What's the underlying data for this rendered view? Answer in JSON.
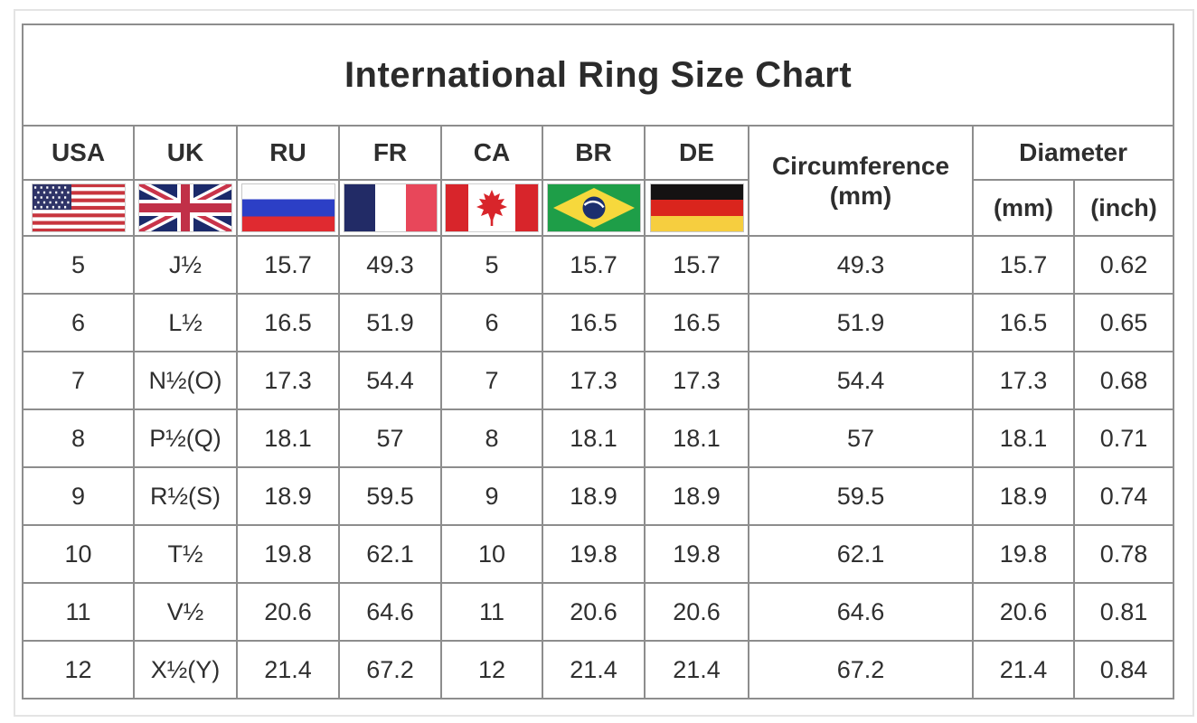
{
  "chart_data": {
    "type": "table",
    "title": "International Ring Size Chart",
    "country_columns": [
      "USA",
      "UK",
      "RU",
      "FR",
      "CA",
      "BR",
      "DE"
    ],
    "flag_icons": [
      "usa-flag-icon",
      "uk-flag-icon",
      "russia-flag-icon",
      "france-flag-icon",
      "canada-flag-icon",
      "brazil-flag-icon",
      "germany-flag-icon"
    ],
    "circumference": {
      "label": "Circumference",
      "unit": "(mm)"
    },
    "diameter": {
      "label": "Diameter",
      "unit_mm": "(mm)",
      "unit_inch": "(inch)"
    },
    "column_order": [
      "USA",
      "UK",
      "RU",
      "FR",
      "CA",
      "BR",
      "DE",
      "Circumference (mm)",
      "Diameter (mm)",
      "Diameter (inch)"
    ],
    "rows": [
      [
        "5",
        "J½",
        "15.7",
        "49.3",
        "5",
        "15.7",
        "15.7",
        "49.3",
        "15.7",
        "0.62"
      ],
      [
        "6",
        "L½",
        "16.5",
        "51.9",
        "6",
        "16.5",
        "16.5",
        "51.9",
        "16.5",
        "0.65"
      ],
      [
        "7",
        "N½(O)",
        "17.3",
        "54.4",
        "7",
        "17.3",
        "17.3",
        "54.4",
        "17.3",
        "0.68"
      ],
      [
        "8",
        "P½(Q)",
        "18.1",
        "57",
        "8",
        "18.1",
        "18.1",
        "57",
        "18.1",
        "0.71"
      ],
      [
        "9",
        "R½(S)",
        "18.9",
        "59.5",
        "9",
        "18.9",
        "18.9",
        "59.5",
        "18.9",
        "0.74"
      ],
      [
        "10",
        "T½",
        "19.8",
        "62.1",
        "10",
        "19.8",
        "19.8",
        "62.1",
        "19.8",
        "0.78"
      ],
      [
        "11",
        "V½",
        "20.6",
        "64.6",
        "11",
        "20.6",
        "20.6",
        "64.6",
        "20.6",
        "0.81"
      ],
      [
        "12",
        "X½(Y)",
        "21.4",
        "67.2",
        "12",
        "21.4",
        "21.4",
        "67.2",
        "21.4",
        "0.84"
      ]
    ],
    "layout_hints": {
      "grid": "on",
      "header_rows": 2,
      "title_row": true
    }
  },
  "colors": {
    "table_border": "#8d8d8d",
    "text": "#262626",
    "background": "#ffffff"
  }
}
